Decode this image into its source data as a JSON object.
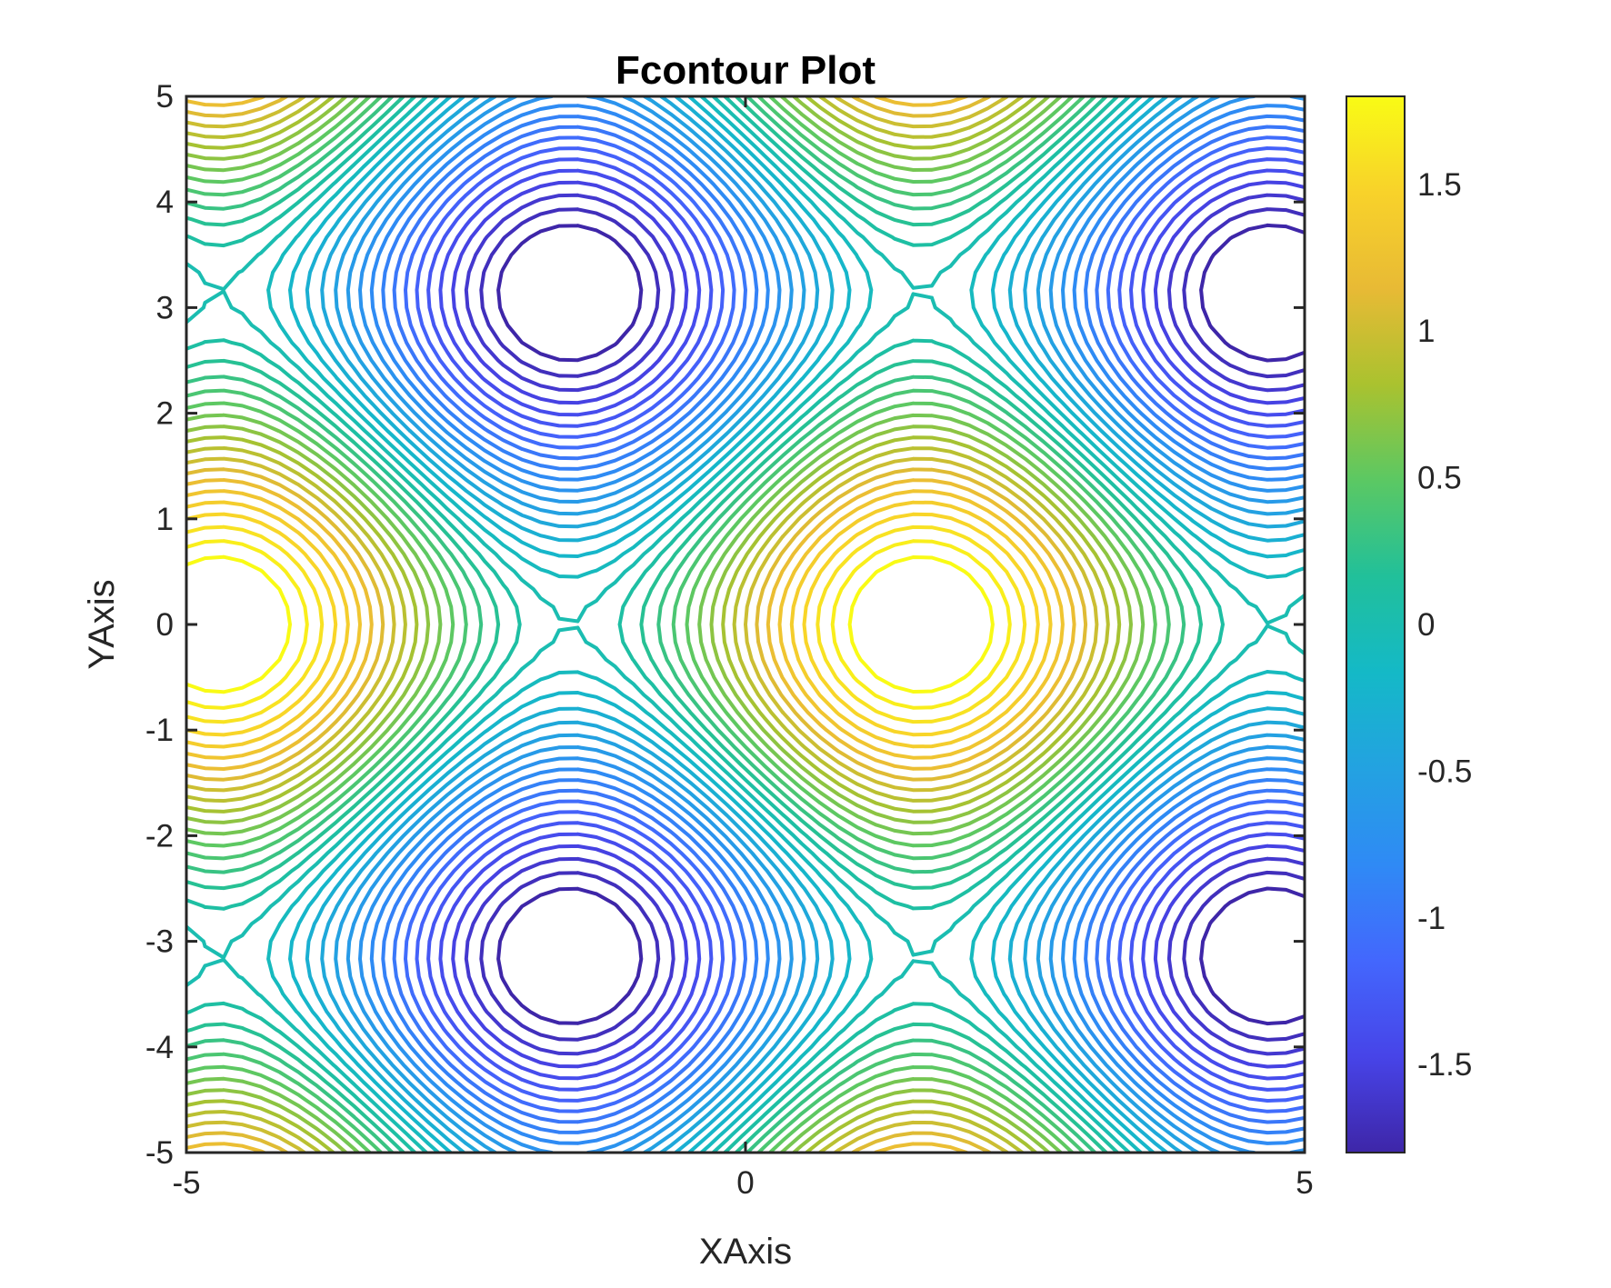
{
  "chart_data": {
    "type": "contour",
    "title": "Fcontour Plot",
    "xlabel": "XAxis",
    "ylabel": "YAxis",
    "function": "sin(x) + cos(y)",
    "xlim": [
      -5,
      5
    ],
    "ylim": [
      -5,
      5
    ],
    "xticks": [
      -5,
      0,
      5
    ],
    "xtick_labels": [
      "-5",
      "0",
      "5"
    ],
    "yticks": [
      -5,
      -4,
      -3,
      -2,
      -1,
      0,
      1,
      2,
      3,
      4,
      5
    ],
    "ytick_labels": [
      "-5",
      "-4",
      "-3",
      "-2",
      "-1",
      "0",
      "1",
      "2",
      "3",
      "4",
      "5"
    ],
    "level_min": -1.8,
    "level_max": 1.8,
    "level_step": 0.1,
    "grid": false,
    "colorbar": {
      "position": "right",
      "range": [
        -1.8,
        1.8
      ],
      "ticks": [
        -1.5,
        -1,
        -0.5,
        0,
        0.5,
        1,
        1.5
      ],
      "tick_labels": [
        "-1.5",
        "-1",
        "-0.5",
        "0",
        "0.5",
        "1",
        "1.5"
      ]
    },
    "colormap": [
      "#3e26a8",
      "#4744e8",
      "#4367fd",
      "#2f8af5",
      "#23a2e1",
      "#14b9c7",
      "#21c09a",
      "#5bc863",
      "#aac22f",
      "#e8ba35",
      "#f8d22a",
      "#f9fb15"
    ],
    "colors": {
      "axes": "#262626",
      "title": "#000000",
      "background": "#ffffff"
    }
  }
}
